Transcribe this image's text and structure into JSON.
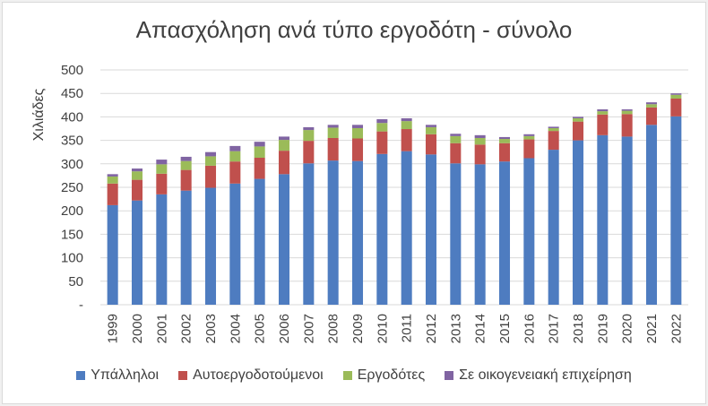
{
  "chart_data": {
    "type": "bar",
    "stacked": true,
    "title": "Απασχόληση ανά τύπο εργοδότη - σύνολο",
    "ylabel": "Χιλιάδες",
    "xlabel": "",
    "ylim": [
      0,
      500
    ],
    "yticks": [
      "-",
      "50",
      "100",
      "150",
      "200",
      "250",
      "300",
      "350",
      "400",
      "450",
      "500"
    ],
    "grid": "horizontal",
    "legend_position": "bottom",
    "categories": [
      "1999",
      "2000",
      "2001",
      "2002",
      "2003",
      "2004",
      "2005",
      "2006",
      "2007",
      "2008",
      "2009",
      "2010",
      "2011",
      "2012",
      "2013",
      "2014",
      "2015",
      "2016",
      "2017",
      "2018",
      "2019",
      "2020",
      "2021",
      "2022"
    ],
    "series": [
      {
        "name": "Υπάλληλοι",
        "color": "#4e7cc0",
        "values": [
          212,
          222,
          235,
          243,
          249,
          258,
          268,
          278,
          301,
          307,
          306,
          321,
          327,
          320,
          301,
          299,
          305,
          312,
          330,
          350,
          361,
          358,
          383,
          401
        ]
      },
      {
        "name": "Αυτοεργοδοτούμενοι",
        "color": "#c0504d",
        "values": [
          46,
          44,
          44,
          44,
          47,
          47,
          45,
          50,
          48,
          48,
          48,
          48,
          47,
          43,
          43,
          42,
          39,
          40,
          40,
          40,
          44,
          48,
          37,
          38
        ]
      },
      {
        "name": "Εργοδότες",
        "color": "#9bbb59",
        "values": [
          15,
          18,
          20,
          19,
          20,
          22,
          24,
          23,
          23,
          22,
          22,
          18,
          17,
          15,
          15,
          14,
          9,
          7,
          6,
          7,
          7,
          7,
          7,
          8
        ]
      },
      {
        "name": "Σε οικογενειακή επιχείρηση",
        "color": "#8064a2",
        "values": [
          5,
          6,
          10,
          9,
          9,
          11,
          10,
          7,
          6,
          6,
          7,
          8,
          6,
          5,
          5,
          6,
          4,
          4,
          3,
          3,
          4,
          3,
          4,
          3
        ]
      }
    ]
  }
}
